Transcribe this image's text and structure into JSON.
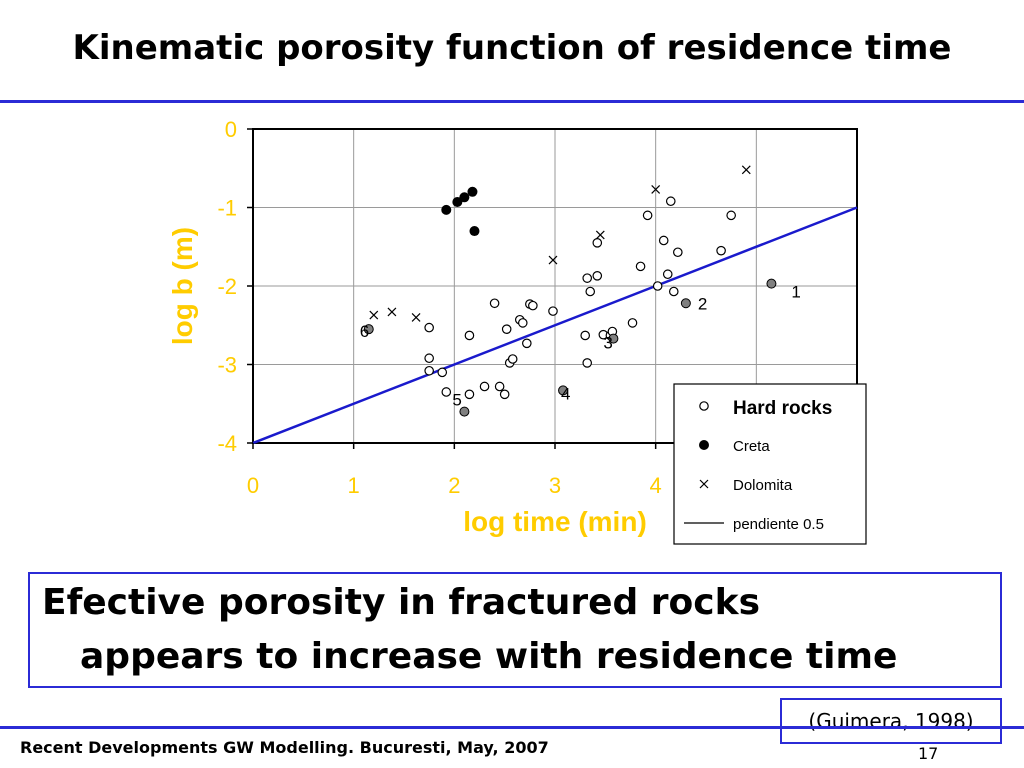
{
  "slide": {
    "title": "Kinematic porosity function of residence time",
    "note_line1": "Efective porosity in fractured rocks",
    "note_line2": "appears to increase with residence time",
    "citation": "(Guimera, 1998)",
    "footer": "Recent Developments GW Modelling. Bucuresti, May, 2007",
    "page_number": "17"
  },
  "colors": {
    "rule": "#2b2bd6",
    "axis_label": "#ffcc00",
    "fit_line": "#1a1acc",
    "marked_point": "#808080"
  },
  "chart_data": {
    "type": "scatter",
    "xlabel": "log time (min)",
    "ylabel": "log  b (m)",
    "xlim": [
      0,
      6
    ],
    "ylim": [
      -4,
      0
    ],
    "x_ticks": [
      "0",
      "1",
      "2",
      "3",
      "4"
    ],
    "y_ticks": [
      "0",
      "-1",
      "-2",
      "-3",
      "-4"
    ],
    "grid": true,
    "legend_position": "bottom-right",
    "legend": [
      {
        "label": "Hard rocks",
        "marker": "open-circle"
      },
      {
        "label": "Creta",
        "marker": "filled-circle"
      },
      {
        "label": "Dolomita",
        "marker": "cross"
      },
      {
        "label": "pendiente 0.5",
        "marker": "line"
      }
    ],
    "series": [
      {
        "name": "Hard rocks",
        "marker": "open-circle",
        "points": [
          [
            1.75,
            -2.53
          ],
          [
            1.75,
            -2.92
          ],
          [
            1.75,
            -3.08
          ],
          [
            1.88,
            -3.1
          ],
          [
            1.92,
            -3.35
          ],
          [
            2.15,
            -2.63
          ],
          [
            2.15,
            -3.38
          ],
          [
            2.3,
            -3.28
          ],
          [
            2.4,
            -2.22
          ],
          [
            2.45,
            -3.28
          ],
          [
            2.5,
            -3.38
          ],
          [
            2.52,
            -2.55
          ],
          [
            2.55,
            -2.98
          ],
          [
            2.58,
            -2.93
          ],
          [
            2.65,
            -2.43
          ],
          [
            2.68,
            -2.47
          ],
          [
            2.72,
            -2.73
          ],
          [
            2.75,
            -2.23
          ],
          [
            2.78,
            -2.25
          ],
          [
            2.98,
            -2.32
          ],
          [
            3.3,
            -2.63
          ],
          [
            3.32,
            -2.98
          ],
          [
            3.32,
            -1.9
          ],
          [
            3.35,
            -2.07
          ],
          [
            3.42,
            -1.87
          ],
          [
            3.42,
            -1.45
          ],
          [
            3.48,
            -2.62
          ],
          [
            3.55,
            -2.63
          ],
          [
            3.57,
            -2.58
          ],
          [
            3.77,
            -2.47
          ],
          [
            3.85,
            -1.75
          ],
          [
            3.92,
            -1.1
          ],
          [
            4.02,
            -2.0
          ],
          [
            4.08,
            -1.42
          ],
          [
            4.12,
            -1.85
          ],
          [
            4.18,
            -2.07
          ],
          [
            4.22,
            -1.57
          ],
          [
            4.15,
            -0.92
          ],
          [
            4.65,
            -1.55
          ],
          [
            4.75,
            -1.1
          ]
        ]
      },
      {
        "name": "Creta",
        "marker": "filled-circle",
        "points": [
          [
            1.92,
            -1.03
          ],
          [
            2.03,
            -0.93
          ],
          [
            2.1,
            -0.87
          ],
          [
            2.18,
            -0.8
          ],
          [
            2.2,
            -1.3
          ]
        ]
      },
      {
        "name": "Dolomita",
        "marker": "cross",
        "points": [
          [
            1.2,
            -2.37
          ],
          [
            1.38,
            -2.33
          ],
          [
            1.62,
            -2.4
          ],
          [
            2.98,
            -1.67
          ],
          [
            3.45,
            -1.35
          ],
          [
            4.0,
            -0.77
          ],
          [
            4.9,
            -0.52
          ]
        ]
      },
      {
        "name": "pendiente 0.5",
        "type": "line",
        "points": [
          [
            0,
            -4
          ],
          [
            6,
            -1
          ]
        ]
      }
    ],
    "marked_points": [
      {
        "label": "1",
        "x": 5.15,
        "y": -1.97
      },
      {
        "label": "2",
        "x": 4.3,
        "y": -2.22
      },
      {
        "label": "3",
        "x": 3.58,
        "y": -2.67
      },
      {
        "label": "4",
        "x": 3.08,
        "y": -3.33
      },
      {
        "label": "5",
        "x": 2.1,
        "y": -3.6
      },
      {
        "label": "6",
        "x": 1.15,
        "y": -2.55
      }
    ]
  }
}
